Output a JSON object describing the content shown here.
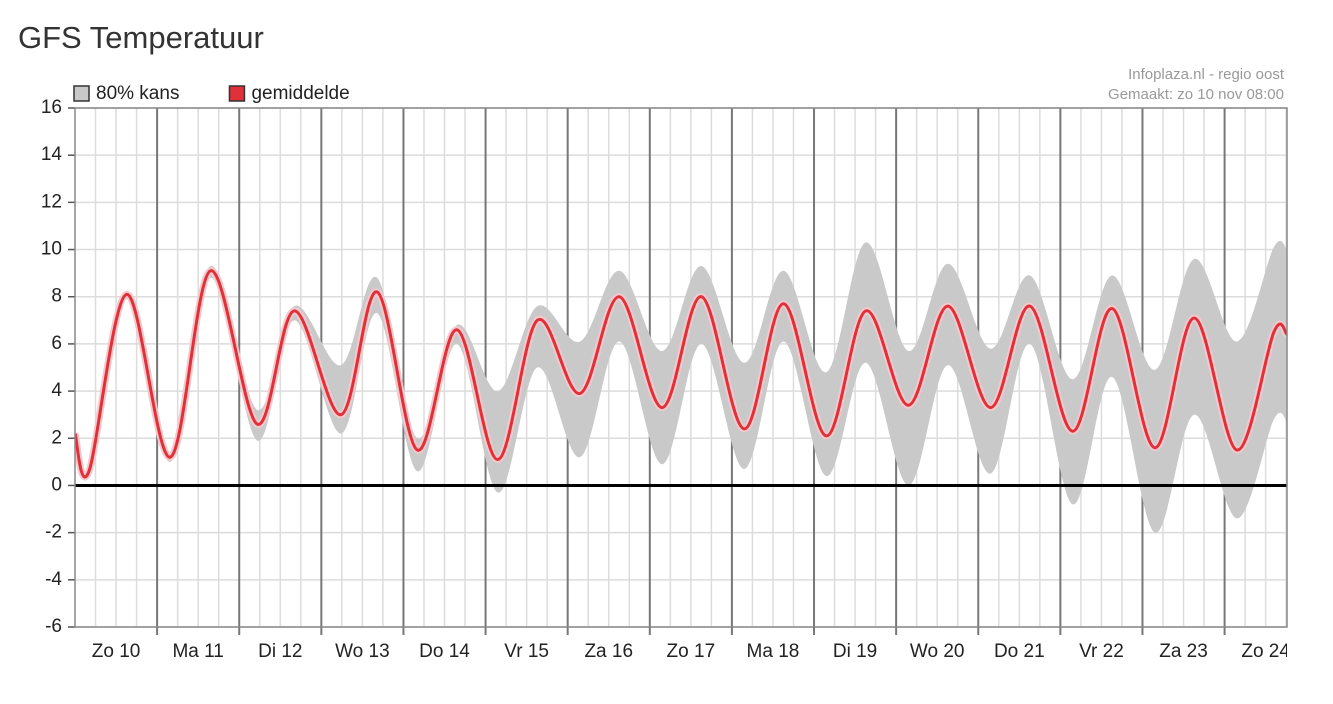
{
  "chart_data": {
    "type": "band-line",
    "title": "GFS Temperatuur",
    "source": "Infoplaza.nl - regio oost",
    "made": "Gemaakt: zo 10 nov 08:00",
    "days": [
      "Zo 10",
      "Ma 11",
      "Di 12",
      "Wo 13",
      "Do 14",
      "Vr 15",
      "Za 16",
      "Zo 17",
      "Ma 18",
      "Di 19",
      "Wo 20",
      "Do 21",
      "Vr 22",
      "Za 23",
      "Zo 24"
    ],
    "xlim": [
      0,
      14.76
    ],
    "xticks": [
      1,
      2,
      3,
      4,
      5,
      6,
      7,
      8,
      9,
      10,
      11,
      12,
      13,
      14
    ],
    "ylim": [
      -6,
      16
    ],
    "yticks": [
      -6,
      -4,
      -2,
      0,
      2,
      4,
      6,
      8,
      10,
      12,
      14,
      16
    ],
    "grid": true,
    "x": [
      0,
      0.17,
      0.63,
      1.16,
      1.65,
      2.22,
      2.67,
      3.24,
      3.68,
      4.17,
      4.65,
      5.15,
      5.63,
      6.15,
      6.63,
      7.15,
      7.63,
      8.15,
      8.63,
      9.15,
      9.63,
      10.15,
      10.63,
      11.15,
      11.63,
      12.15,
      12.63,
      13.15,
      13.63,
      14.15,
      14.6,
      14.76
    ],
    "series": [
      {
        "name": "80% kans",
        "color": "#c9c9c9",
        "high": [
          2.3,
          0.7,
          8.2,
          1.4,
          9.3,
          3.2,
          7.6,
          5.1,
          8.8,
          2.0,
          6.8,
          4.0,
          7.6,
          6.1,
          9.1,
          5.7,
          9.3,
          5.2,
          9.1,
          4.8,
          10.3,
          5.7,
          9.4,
          5.8,
          8.9,
          4.5,
          8.9,
          4.9,
          9.6,
          6.1,
          10.1,
          10.0
        ],
        "low": [
          2.1,
          0.5,
          7.9,
          1.0,
          8.8,
          1.9,
          7.0,
          2.2,
          7.3,
          0.6,
          6.0,
          -0.3,
          5.0,
          1.2,
          6.1,
          0.9,
          6.0,
          0.7,
          6.1,
          0.4,
          5.2,
          0.0,
          5.1,
          0.5,
          6.0,
          -0.8,
          4.6,
          -2.0,
          3.0,
          -1.4,
          2.8,
          2.7
        ]
      },
      {
        "name": "gemiddelde",
        "color": "#e0303a",
        "values": [
          2.2,
          0.6,
          8.1,
          1.2,
          9.1,
          2.6,
          7.4,
          3.0,
          8.2,
          1.5,
          6.6,
          1.1,
          7.0,
          3.9,
          8.0,
          3.3,
          8.0,
          2.4,
          7.7,
          2.1,
          7.4,
          3.4,
          7.6,
          3.3,
          7.6,
          2.3,
          7.5,
          1.6,
          7.1,
          1.5,
          6.5,
          6.4
        ]
      }
    ]
  }
}
